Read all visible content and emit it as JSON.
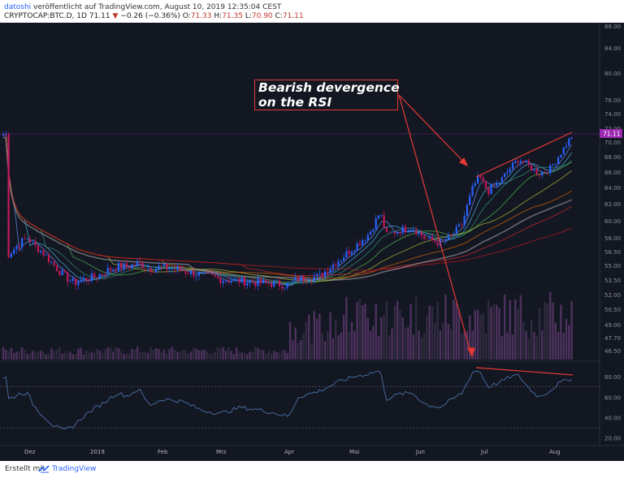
{
  "header": {
    "author": "datoshi",
    "published": "veröffentlicht auf TradingView.com, August 10, 2019 12:35:04 CEST",
    "symbol": "CRYPTOCAP:BTC.D, 1D",
    "last": "71.11",
    "change": "−0.26 (−0.36%)",
    "o_label": "O:",
    "o_val": "71.33",
    "h_label": "H:",
    "h_val": "71.35",
    "l_label": "L:",
    "l_val": "70.90",
    "c_label": "C:",
    "c_val": "71.11"
  },
  "annotation": {
    "line1": "Bearish devergence",
    "line2": "on the RSI"
  },
  "footer": {
    "made_with": "Erstellt mit",
    "brand": "TradingView"
  },
  "colors": {
    "background": "#131722",
    "candle_up": "#2962ff",
    "candle_down": "#c2185b",
    "rsi_line": "#4a6fa5",
    "annotation": "#e53935",
    "price_line": "#9c27b0"
  },
  "chart_data": [
    {
      "type": "candlestick",
      "price_axis": {
        "ticks": [
          "88.00",
          "84.00",
          "80.00",
          "76.00",
          "74.00",
          "72.00",
          "70.00",
          "68.00",
          "66.00",
          "64.00",
          "62.00",
          "60.00",
          "58.00",
          "56.50",
          "55.00",
          "53.50",
          "52.00",
          "50.50",
          "49.00",
          "47.70",
          "46.50"
        ],
        "current_price": "71.11"
      },
      "time_axis": {
        "ticks": [
          "Dez",
          "2019",
          "Feb",
          "Mrz",
          "Apr",
          "Mai",
          "Jun",
          "Jul",
          "Aug"
        ]
      },
      "series_close": [
        {
          "t": "Nov 15",
          "v": 56.2
        },
        {
          "t": "Nov 20",
          "v": 56.9
        },
        {
          "t": "Nov 25",
          "v": 57.6
        },
        {
          "t": "Nov 30",
          "v": 58.0
        },
        {
          "t": "Dec 3",
          "v": 57.2
        },
        {
          "t": "Dec 7",
          "v": 56.5
        },
        {
          "t": "Dec 12",
          "v": 55.2
        },
        {
          "t": "Dec 17",
          "v": 54.0
        },
        {
          "t": "Dec 22",
          "v": 53.2
        },
        {
          "t": "Dec 27",
          "v": 53.6
        },
        {
          "t": "Jan 1",
          "v": 53.8
        },
        {
          "t": "Jan 6",
          "v": 54.4
        },
        {
          "t": "Jan 11",
          "v": 54.9
        },
        {
          "t": "Jan 16",
          "v": 54.9
        },
        {
          "t": "Jan 21",
          "v": 55.2
        },
        {
          "t": "Jan 26",
          "v": 54.7
        },
        {
          "t": "Feb 1",
          "v": 54.8
        },
        {
          "t": "Feb 10",
          "v": 54.5
        },
        {
          "t": "Feb 20",
          "v": 54.0
        },
        {
          "t": "Mar 1",
          "v": 53.6
        },
        {
          "t": "Mar 10",
          "v": 53.4
        },
        {
          "t": "Mar 20",
          "v": 53.2
        },
        {
          "t": "Apr 1",
          "v": 53.0
        },
        {
          "t": "Apr 5",
          "v": 53.6
        },
        {
          "t": "Apr 15",
          "v": 53.9
        },
        {
          "t": "Apr 25",
          "v": 55.8
        },
        {
          "t": "May 1",
          "v": 57.0
        },
        {
          "t": "May 8",
          "v": 58.5
        },
        {
          "t": "May 13",
          "v": 61.0
        },
        {
          "t": "May 16",
          "v": 58.3
        },
        {
          "t": "May 22",
          "v": 58.9
        },
        {
          "t": "May 28",
          "v": 59.2
        },
        {
          "t": "Jun 3",
          "v": 57.9
        },
        {
          "t": "Jun 10",
          "v": 57.4
        },
        {
          "t": "Jun 15",
          "v": 58.2
        },
        {
          "t": "Jun 20",
          "v": 59.6
        },
        {
          "t": "Jun 25",
          "v": 64.0
        },
        {
          "t": "Jun 28",
          "v": 65.4
        },
        {
          "t": "Jul 2",
          "v": 63.5
        },
        {
          "t": "Jul 8",
          "v": 65.0
        },
        {
          "t": "Jul 12",
          "v": 66.5
        },
        {
          "t": "Jul 16",
          "v": 67.7
        },
        {
          "t": "Jul 20",
          "v": 66.9
        },
        {
          "t": "Jul 25",
          "v": 65.8
        },
        {
          "t": "Jul 30",
          "v": 66.4
        },
        {
          "t": "Aug 3",
          "v": 68.0
        },
        {
          "t": "Aug 7",
          "v": 69.8
        },
        {
          "t": "Aug 10",
          "v": 71.11
        }
      ]
    },
    {
      "type": "line",
      "y_axis": {
        "ticks": [
          "80.00",
          "60.00",
          "40.00",
          "20.00"
        ]
      },
      "series": [
        {
          "values": [
            {
              "t": "Nov 15",
              "v": 58
            },
            {
              "t": "Nov 20",
              "v": 61
            },
            {
              "t": "Nov 25",
              "v": 64
            },
            {
              "t": "Nov 30",
              "v": 63
            },
            {
              "t": "Dec 3",
              "v": 52
            },
            {
              "t": "Dec 7",
              "v": 43
            },
            {
              "t": "Dec 12",
              "v": 33
            },
            {
              "t": "Dec 17",
              "v": 27
            },
            {
              "t": "Dec 22",
              "v": 32
            },
            {
              "t": "Dec 27",
              "v": 42
            },
            {
              "t": "Jan 1",
              "v": 49
            },
            {
              "t": "Jan 6",
              "v": 56
            },
            {
              "t": "Jan 11",
              "v": 64
            },
            {
              "t": "Jan 16",
              "v": 61
            },
            {
              "t": "Jan 21",
              "v": 68
            },
            {
              "t": "Jan 26",
              "v": 52
            },
            {
              "t": "Feb 1",
              "v": 58
            },
            {
              "t": "Feb 10",
              "v": 56
            },
            {
              "t": "Feb 20",
              "v": 47
            },
            {
              "t": "Mar 1",
              "v": 44
            },
            {
              "t": "Mar 10",
              "v": 50
            },
            {
              "t": "Mar 20",
              "v": 47
            },
            {
              "t": "Apr 1",
              "v": 41
            },
            {
              "t": "Apr 5",
              "v": 60
            },
            {
              "t": "Apr 15",
              "v": 66
            },
            {
              "t": "Apr 25",
              "v": 76
            },
            {
              "t": "May 1",
              "v": 80
            },
            {
              "t": "May 8",
              "v": 83
            },
            {
              "t": "May 13",
              "v": 86
            },
            {
              "t": "May 16",
              "v": 58
            },
            {
              "t": "May 22",
              "v": 63
            },
            {
              "t": "May 28",
              "v": 64
            },
            {
              "t": "Jun 3",
              "v": 53
            },
            {
              "t": "Jun 10",
              "v": 50
            },
            {
              "t": "Jun 15",
              "v": 57
            },
            {
              "t": "Jun 20",
              "v": 64
            },
            {
              "t": "Jun 25",
              "v": 85
            },
            {
              "t": "Jun 28",
              "v": 86
            },
            {
              "t": "Jul 2",
              "v": 70
            },
            {
              "t": "Jul 8",
              "v": 75
            },
            {
              "t": "Jul 12",
              "v": 80
            },
            {
              "t": "Jul 16",
              "v": 81
            },
            {
              "t": "Jul 20",
              "v": 70
            },
            {
              "t": "Jul 25",
              "v": 60
            },
            {
              "t": "Jul 30",
              "v": 66
            },
            {
              "t": "Aug 3",
              "v": 73
            },
            {
              "t": "Aug 7",
              "v": 77
            },
            {
              "t": "Aug 10",
              "v": 79
            }
          ]
        }
      ],
      "levels": [
        70,
        30
      ]
    }
  ]
}
